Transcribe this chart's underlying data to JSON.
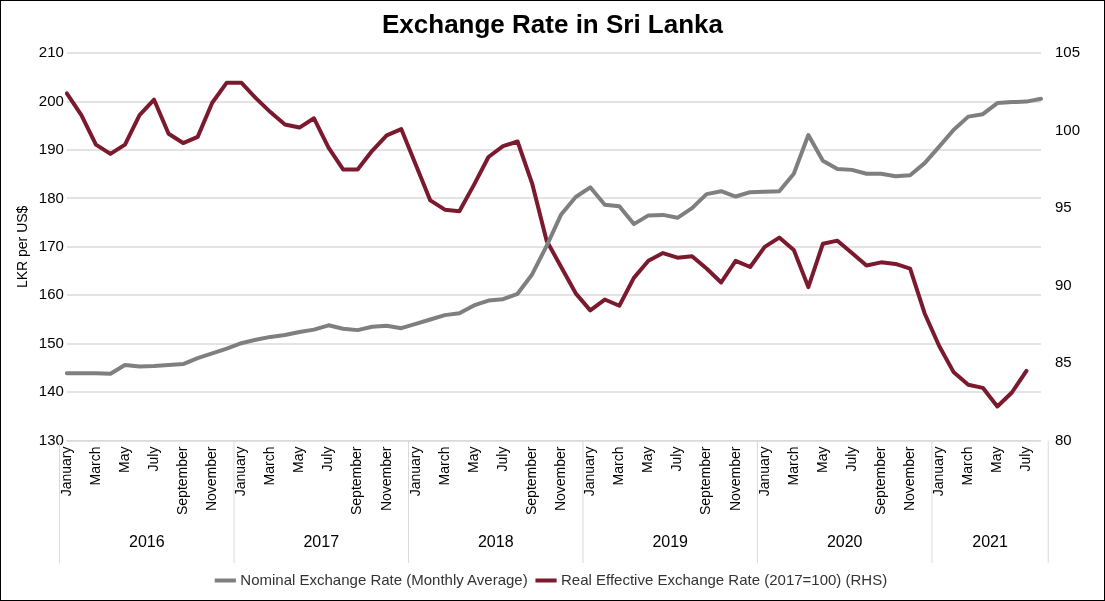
{
  "chart_data": {
    "type": "line",
    "title": "Exchange Rate in Sri Lanka",
    "ylabel": "LKR per US$",
    "categories": [
      "January",
      null,
      "March",
      null,
      "May",
      null,
      "July",
      null,
      "September",
      null,
      "November",
      null,
      "January",
      null,
      "March",
      null,
      "May",
      null,
      "July",
      null,
      "September",
      null,
      "November",
      null,
      "January",
      null,
      "March",
      null,
      "May",
      null,
      "July",
      null,
      "September",
      null,
      "November",
      null,
      "January",
      null,
      "March",
      null,
      "May",
      null,
      "July",
      null,
      "September",
      null,
      "November",
      null,
      "January",
      null,
      "March",
      null,
      "May",
      null,
      "July",
      null,
      "September",
      null,
      "November",
      null,
      "January",
      null,
      "March",
      null,
      "May",
      null,
      "July",
      null
    ],
    "annotations": [
      "2016",
      "2017",
      "2018",
      "2019",
      "2020",
      "2021"
    ],
    "series": [
      {
        "name": "Nominal Exchange Rate (Monthly Average)",
        "color": "#7f7f7f",
        "values": [
          143.9,
          143.9,
          143.9,
          143.8,
          145.6,
          145.3,
          145.4,
          145.6,
          145.8,
          147.0,
          148.0,
          149.0,
          150.1,
          150.8,
          151.4,
          151.8,
          152.4,
          152.9,
          153.8,
          153.1,
          152.8,
          153.5,
          153.7,
          153.2,
          154.1,
          155.0,
          155.9,
          156.3,
          157.9,
          158.9,
          159.2,
          160.3,
          164.3,
          170.2,
          176.7,
          180.3,
          182.3,
          178.7,
          178.4,
          174.7,
          176.5,
          176.6,
          176.0,
          178.0,
          180.9,
          181.5,
          180.4,
          181.3,
          181.4,
          181.5,
          185.1,
          193.1,
          187.8,
          186.1,
          185.9,
          185.1,
          185.1,
          184.6,
          184.8,
          187.3,
          190.7,
          194.2,
          196.9,
          197.4,
          199.7,
          199.9,
          200.0,
          200.6
        ]
      },
      {
        "name": "Real Effective Exchange Rate (2017=100) (RHS)",
        "color": "#7b1a2e",
        "axis": "y2",
        "values": [
          102.4,
          101.0,
          99.1,
          98.5,
          99.1,
          101.0,
          102.0,
          99.8,
          99.2,
          99.6,
          101.8,
          103.1,
          103.1,
          102.1,
          101.2,
          100.4,
          100.2,
          100.8,
          98.9,
          97.5,
          97.5,
          98.7,
          99.7,
          100.1,
          97.8,
          95.5,
          94.9,
          94.8,
          96.5,
          98.3,
          99.0,
          99.3,
          96.6,
          92.9,
          91.2,
          89.5,
          88.4,
          89.1,
          88.7,
          90.5,
          91.6,
          92.1,
          91.8,
          91.9,
          91.1,
          90.2,
          91.6,
          91.2,
          92.5,
          93.1,
          92.3,
          89.9,
          92.7,
          92.9,
          92.1,
          91.3,
          91.5,
          91.4,
          91.1,
          88.2,
          86.1,
          84.4,
          83.6,
          83.4,
          82.2,
          83.1,
          84.5,
          null
        ]
      }
    ],
    "ylim": [
      130,
      210
    ],
    "yticks": [
      130,
      140,
      150,
      160,
      170,
      180,
      190,
      200,
      210
    ],
    "y2lim": [
      80,
      105
    ],
    "y2ticks": [
      80,
      85,
      90,
      95,
      100,
      105
    ],
    "grid": "y",
    "legend": "bottom",
    "marker": "none",
    "line_style": "solid"
  }
}
